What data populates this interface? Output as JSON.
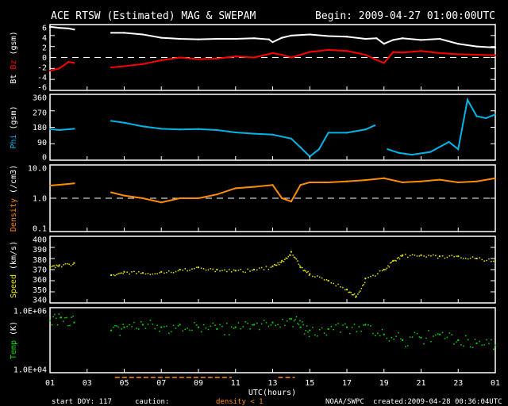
{
  "header": {
    "title": "ACE RTSW (Estimated) MAG & SWEPAM",
    "begin": "Begin: 2009-04-27 01:00:00UTC"
  },
  "footer": {
    "start_doy": "start DOY: 117",
    "caution": "caution:",
    "caution_text": "density < 1",
    "source": "NOAA/SWPC",
    "created": "created:2009-04-28 00:36:04UTC",
    "xlabel": "UTC(hours)"
  },
  "colors": {
    "bt": "#ffffff",
    "bz": "#ff0000",
    "phi": "#00b4e6",
    "density": "#ff8c00",
    "speed": "#e6e600",
    "temp": "#00dc00"
  },
  "chart_data": {
    "type": "line",
    "xlabel": "UTC(hours)",
    "xlim": [
      0,
      24
    ],
    "x_tick_labels": [
      "01",
      "03",
      "05",
      "07",
      "09",
      "11",
      "13",
      "15",
      "17",
      "19",
      "21",
      "23",
      "01"
    ],
    "caution_ranges": [
      [
        3.5,
        9.8
      ],
      [
        12.3,
        13.2
      ]
    ],
    "panels": [
      {
        "ylabel": [
          {
            "t": "Bt ",
            "c": "#ffffff"
          },
          {
            "t": "Bz",
            "c": "#ff0000"
          },
          {
            "t": " (gsm)",
            "c": "#ffffff"
          }
        ],
        "ylim": [
          -6,
          6
        ],
        "log": false,
        "ticks": [
          6,
          4,
          2,
          0,
          -2,
          -4,
          -6
        ],
        "tick_labels": [
          "6",
          "4",
          "2",
          "0",
          "-2",
          "-4",
          "-6"
        ],
        "dashed": 0,
        "series": [
          {
            "name": "Bt",
            "color": "#ffffff",
            "style": "line",
            "points": [
              [
                0,
                5.6
              ],
              [
                0.5,
                5.4
              ],
              [
                1.0,
                5.3
              ],
              [
                1.3,
                5.1
              ],
              null,
              [
                3.3,
                4.5
              ],
              [
                4,
                4.5
              ],
              [
                5,
                4.2
              ],
              [
                6,
                3.6
              ],
              [
                7,
                3.4
              ],
              [
                8,
                3.3
              ],
              [
                9,
                3.4
              ],
              [
                10,
                3.4
              ],
              [
                11,
                3.5
              ],
              [
                11.8,
                3.3
              ],
              [
                12,
                2.8
              ],
              [
                12.5,
                3.6
              ],
              [
                13,
                4.0
              ],
              [
                14,
                4.2
              ],
              [
                15,
                3.9
              ],
              [
                16,
                3.8
              ],
              [
                17,
                3.4
              ],
              [
                17.6,
                3.5
              ],
              [
                18,
                2.5
              ],
              [
                18.5,
                3.2
              ],
              [
                19,
                3.5
              ],
              [
                20,
                3.2
              ],
              [
                21,
                3.4
              ],
              [
                22,
                2.5
              ],
              [
                23,
                2.0
              ],
              [
                24,
                1.8
              ]
            ]
          },
          {
            "name": "Bz",
            "color": "#ff0000",
            "style": "line",
            "points": [
              [
                0,
                -2.4
              ],
              [
                0.5,
                -2.0
              ],
              [
                1.0,
                -0.8
              ],
              [
                1.3,
                -1.0
              ],
              null,
              [
                3.3,
                -1.8
              ],
              [
                4,
                -1.6
              ],
              [
                5,
                -1.2
              ],
              [
                6,
                -0.5
              ],
              [
                7,
                0.0
              ],
              [
                8,
                -0.3
              ],
              [
                9,
                -0.2
              ],
              [
                10,
                0.2
              ],
              [
                11,
                0.0
              ],
              [
                12,
                0.8
              ],
              [
                12.5,
                0.5
              ],
              [
                13,
                0.0
              ],
              [
                14,
                1.0
              ],
              [
                15,
                1.4
              ],
              [
                16,
                1.2
              ],
              [
                17,
                0.5
              ],
              [
                17.5,
                -0.3
              ],
              [
                18,
                -1.0
              ],
              [
                18.5,
                1.0
              ],
              [
                19,
                0.9
              ],
              [
                20,
                1.2
              ],
              [
                21,
                0.8
              ],
              [
                22,
                0.6
              ],
              [
                23,
                0.5
              ],
              [
                24,
                0.4
              ]
            ]
          }
        ]
      },
      {
        "ylabel": [
          {
            "t": "Phi",
            "c": "#00b4e6"
          },
          {
            "t": " (gsm)",
            "c": "#ffffff"
          }
        ],
        "ylim": [
          0,
          360
        ],
        "log": false,
        "ticks": [
          360,
          270,
          180,
          90,
          0
        ],
        "tick_labels": [
          "360",
          "270",
          "180",
          "90",
          "0"
        ],
        "series": [
          {
            "name": "Phi",
            "color": "#00b4e6",
            "style": "line",
            "points": [
              [
                0,
                170
              ],
              [
                0.5,
                165
              ],
              [
                1.3,
                172
              ],
              null,
              [
                3.3,
                215
              ],
              [
                4,
                205
              ],
              [
                5,
                185
              ],
              [
                6,
                172
              ],
              [
                7,
                168
              ],
              [
                8,
                170
              ],
              [
                9,
                165
              ],
              [
                10,
                152
              ],
              [
                11,
                145
              ],
              [
                12,
                140
              ],
              [
                13,
                118
              ],
              [
                13.5,
                70
              ],
              [
                14,
                20
              ],
              [
                14.5,
                60
              ],
              [
                15,
                150
              ],
              [
                16,
                150
              ],
              [
                17,
                168
              ],
              [
                17.5,
                190
              ],
              null,
              [
                18.2,
                60
              ],
              [
                18.8,
                40
              ],
              [
                19.5,
                30
              ],
              [
                20.5,
                45
              ],
              [
                21.5,
                100
              ],
              [
                22,
                60
              ],
              [
                22.5,
                330
              ],
              [
                23,
                240
              ],
              [
                23.5,
                230
              ],
              [
                24,
                250
              ]
            ]
          }
        ]
      },
      {
        "ylabel": [
          {
            "t": "Density",
            "c": "#ff8c00"
          },
          {
            "t": " (/cm3)",
            "c": "#ffffff"
          }
        ],
        "ylim": [
          0.1,
          10
        ],
        "log": true,
        "ticks": [
          10,
          1,
          0.1
        ],
        "tick_labels": [
          "10.0",
          "1.0",
          "0.1"
        ],
        "dashed": 1,
        "series": [
          {
            "name": "Density",
            "color": "#ff8c00",
            "style": "line",
            "points": [
              [
                0,
                2.4
              ],
              [
                0.7,
                2.6
              ],
              [
                1.3,
                2.8
              ],
              null,
              [
                3.3,
                1.5
              ],
              [
                4,
                1.2
              ],
              [
                5,
                1.0
              ],
              [
                6,
                0.75
              ],
              [
                7,
                1.0
              ],
              [
                8,
                1.0
              ],
              [
                9,
                1.3
              ],
              [
                10,
                2.0
              ],
              [
                11,
                2.2
              ],
              [
                12,
                2.5
              ],
              [
                12.5,
                1.0
              ],
              [
                13,
                0.8
              ],
              [
                13.5,
                2.5
              ],
              [
                14,
                3.0
              ],
              [
                15,
                3.0
              ],
              [
                16,
                3.2
              ],
              [
                17,
                3.5
              ],
              [
                18,
                4.0
              ],
              [
                19,
                3.0
              ],
              [
                20,
                3.2
              ],
              [
                21,
                3.6
              ],
              [
                22,
                3.0
              ],
              [
                23,
                3.2
              ],
              [
                24,
                4.0
              ]
            ]
          }
        ]
      },
      {
        "ylabel": [
          {
            "t": "Speed",
            "c": "#e6e600"
          },
          {
            "t": " (km/s)",
            "c": "#ffffff"
          }
        ],
        "ylim": [
          340,
          400
        ],
        "log": false,
        "ticks": [
          400,
          390,
          380,
          370,
          360,
          350,
          340
        ],
        "tick_labels": [
          "400",
          "390",
          "380",
          "370",
          "360",
          "350",
          "340"
        ],
        "series": [
          {
            "name": "Speed",
            "color": "#e6e600",
            "style": "dots",
            "points": [
              [
                0,
                372
              ],
              [
                0.5,
                374
              ],
              [
                1.3,
                376
              ],
              null,
              [
                3.3,
                365
              ],
              [
                4,
                368
              ],
              [
                5,
                367
              ],
              [
                6,
                368
              ],
              [
                7,
                370
              ],
              [
                8,
                372
              ],
              [
                9,
                370
              ],
              [
                10,
                369
              ],
              [
                11,
                370
              ],
              [
                12,
                373
              ],
              [
                12.5,
                378
              ],
              [
                13,
                386
              ],
              [
                13.5,
                372
              ],
              [
                14,
                366
              ],
              [
                15,
                360
              ],
              [
                16,
                352
              ],
              [
                16.5,
                346
              ],
              [
                17,
                362
              ],
              [
                18,
                370
              ],
              [
                18.5,
                378
              ],
              [
                19,
                383
              ],
              [
                20,
                383
              ],
              [
                21,
                382
              ],
              [
                22,
                382
              ],
              [
                23,
                380
              ],
              [
                24,
                378
              ]
            ]
          }
        ]
      },
      {
        "ylabel": [
          {
            "t": "Temp",
            "c": "#00dc00"
          },
          {
            "t": " (K)",
            "c": "#ffffff"
          }
        ],
        "ylim": [
          10000,
          1000000
        ],
        "log": true,
        "ticks": [
          1000000,
          10000
        ],
        "tick_labels": [
          "1.0E+06",
          "1.0E+04"
        ],
        "series": [
          {
            "name": "Temp",
            "color": "#00dc00",
            "style": "dots",
            "points": [
              [
                0,
                400000
              ],
              [
                0.6,
                500000
              ],
              [
                1.3,
                350000
              ],
              null,
              [
                3.3,
                200000
              ],
              [
                4,
                250000
              ],
              [
                5,
                300000
              ],
              [
                6,
                250000
              ],
              [
                7,
                300000
              ],
              [
                8,
                250000
              ],
              [
                9,
                220000
              ],
              [
                10,
                250000
              ],
              [
                11,
                300000
              ],
              [
                12,
                350000
              ],
              [
                13,
                450000
              ],
              [
                13.5,
                250000
              ],
              [
                14,
                200000
              ],
              [
                15,
                220000
              ],
              [
                16,
                250000
              ],
              [
                17,
                300000
              ],
              [
                18,
                150000
              ],
              [
                19,
                100000
              ],
              [
                20,
                120000
              ],
              [
                21,
                150000
              ],
              [
                22,
                100000
              ],
              [
                23,
                80000
              ],
              [
                24,
                70000
              ]
            ]
          }
        ]
      }
    ]
  }
}
